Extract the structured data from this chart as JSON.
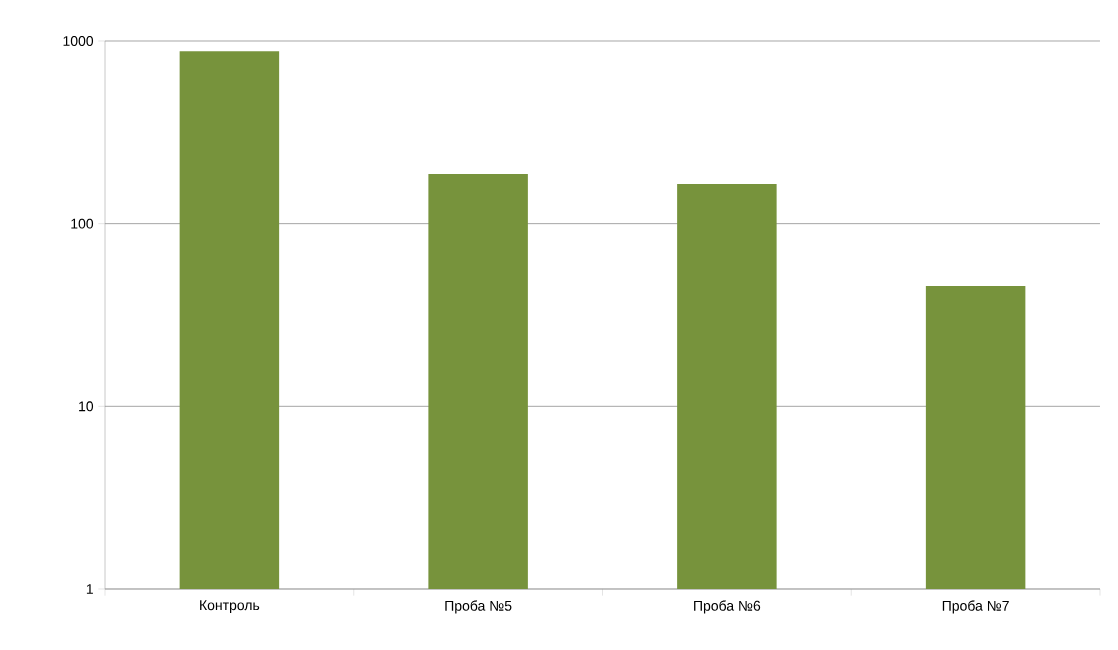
{
  "chart_data": {
    "type": "bar",
    "categories": [
      "Контроль",
      "Проба №5",
      "Проба №6",
      "Проба №7"
    ],
    "values": [
      880,
      187,
      165,
      45.5
    ],
    "color": "#77933c",
    "log": true,
    "ylim": [
      1,
      1000
    ],
    "yticks": [
      1,
      10,
      100,
      1000
    ],
    "grid": "y"
  }
}
